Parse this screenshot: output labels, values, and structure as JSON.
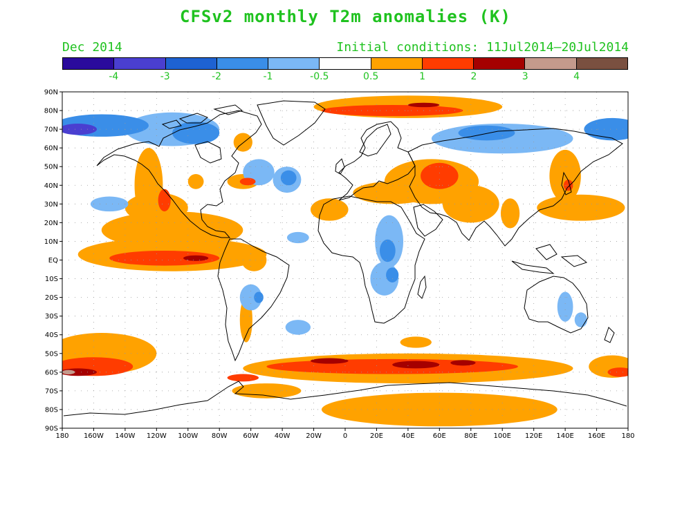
{
  "title": "CFSv2 monthly T2m anomalies (K)",
  "subtitle_left": "Dec 2014",
  "subtitle_right": "Initial conditions: 11Jul2014–20Jul2014",
  "colorbar": {
    "colors": [
      "#2a0a9c",
      "#4a3fd0",
      "#1e62d2",
      "#3a8ee8",
      "#7bb8f5",
      "#ffffff",
      "#ffa200",
      "#ff3c00",
      "#a50000",
      "#c49a8c",
      "#7a5040"
    ],
    "labels": [
      "-4",
      "-3",
      "-2",
      "-1",
      "-0.5",
      "0.5",
      "1",
      "2",
      "3",
      "4"
    ]
  },
  "map": {
    "lat_labels": [
      "90N",
      "80N",
      "70N",
      "60N",
      "50N",
      "40N",
      "30N",
      "20N",
      "10N",
      "EQ",
      "10S",
      "20S",
      "30S",
      "40S",
      "50S",
      "60S",
      "70S",
      "80S",
      "90S"
    ],
    "lon_labels": [
      "180",
      "160W",
      "140W",
      "120W",
      "100W",
      "80W",
      "60W",
      "40W",
      "20W",
      "0",
      "20E",
      "40E",
      "60E",
      "80E",
      "100E",
      "120E",
      "140E",
      "160E",
      "180"
    ],
    "anomaly_regions": [
      {
        "lon": -155,
        "lat": 72,
        "rx": 30,
        "ry": 6,
        "level": 3
      },
      {
        "lon": -170,
        "lat": 70,
        "rx": 12,
        "ry": 3,
        "level": 1
      },
      {
        "lon": -110,
        "lat": 70,
        "rx": 30,
        "ry": 9,
        "level": 4
      },
      {
        "lon": -95,
        "lat": 68,
        "rx": 15,
        "ry": 6,
        "level": 3
      },
      {
        "lon": -150,
        "lat": 30,
        "rx": 12,
        "ry": 4,
        "level": 4
      },
      {
        "lon": -55,
        "lat": 47,
        "rx": 10,
        "ry": 7,
        "level": 4
      },
      {
        "lon": -37,
        "lat": 43,
        "rx": 9,
        "ry": 7,
        "level": 4
      },
      {
        "lon": -36,
        "lat": 44,
        "rx": 5,
        "ry": 4,
        "level": 3
      },
      {
        "lon": -30,
        "lat": 12,
        "rx": 7,
        "ry": 3,
        "level": 4
      },
      {
        "lon": 28,
        "lat": 10,
        "rx": 9,
        "ry": 14,
        "level": 4
      },
      {
        "lon": 27,
        "lat": 5,
        "rx": 5,
        "ry": 6,
        "level": 3
      },
      {
        "lon": 25,
        "lat": -10,
        "rx": 9,
        "ry": 9,
        "level": 4
      },
      {
        "lon": 30,
        "lat": -8,
        "rx": 4,
        "ry": 4,
        "level": 3
      },
      {
        "lon": -60,
        "lat": -20,
        "rx": 7,
        "ry": 7,
        "level": 4
      },
      {
        "lon": -55,
        "lat": -20,
        "rx": 3,
        "ry": 3,
        "level": 3
      },
      {
        "lon": -30,
        "lat": -36,
        "rx": 8,
        "ry": 4,
        "level": 4
      },
      {
        "lon": 100,
        "lat": 65,
        "rx": 45,
        "ry": 8,
        "level": 4
      },
      {
        "lon": 90,
        "lat": 68,
        "rx": 18,
        "ry": 4,
        "level": 3
      },
      {
        "lon": 170,
        "lat": 70,
        "rx": 18,
        "ry": 6,
        "level": 3
      },
      {
        "lon": 140,
        "lat": -25,
        "rx": 5,
        "ry": 8,
        "level": 4
      },
      {
        "lon": 150,
        "lat": -32,
        "rx": 4,
        "ry": 4,
        "level": 4
      },
      {
        "lon": -120,
        "lat": 28,
        "rx": 20,
        "ry": 8,
        "level": 6
      },
      {
        "lon": -110,
        "lat": 16,
        "rx": 45,
        "ry": 10,
        "level": 6
      },
      {
        "lon": -110,
        "lat": 3,
        "rx": 60,
        "ry": 9,
        "level": 6
      },
      {
        "lon": -115,
        "lat": 1,
        "rx": 35,
        "ry": 4,
        "level": 7
      },
      {
        "lon": -95,
        "lat": 1,
        "rx": 8,
        "ry": 1.5,
        "level": 8
      },
      {
        "lon": -125,
        "lat": 40,
        "rx": 9,
        "ry": 20,
        "level": 6
      },
      {
        "lon": -115,
        "lat": 32,
        "rx": 4,
        "ry": 6,
        "level": 7
      },
      {
        "lon": -95,
        "lat": 42,
        "rx": 5,
        "ry": 4,
        "level": 6
      },
      {
        "lon": -65,
        "lat": 42,
        "rx": 10,
        "ry": 4,
        "level": 6
      },
      {
        "lon": -62,
        "lat": 42,
        "rx": 5,
        "ry": 2,
        "level": 7
      },
      {
        "lon": -65,
        "lat": 63,
        "rx": 6,
        "ry": 5,
        "level": 6
      },
      {
        "lon": -58,
        "lat": 0,
        "rx": 8,
        "ry": 6,
        "level": 6
      },
      {
        "lon": -63,
        "lat": -32,
        "rx": 4,
        "ry": 12,
        "level": 6
      },
      {
        "lon": 40,
        "lat": 82,
        "rx": 60,
        "ry": 6,
        "level": 6
      },
      {
        "lon": 30,
        "lat": 80,
        "rx": 45,
        "ry": 3,
        "level": 7
      },
      {
        "lon": 50,
        "lat": 83,
        "rx": 10,
        "ry": 1.2,
        "level": 8
      },
      {
        "lon": 55,
        "lat": 42,
        "rx": 30,
        "ry": 12,
        "level": 6
      },
      {
        "lon": 60,
        "lat": 45,
        "rx": 12,
        "ry": 7,
        "level": 7
      },
      {
        "lon": 30,
        "lat": 36,
        "rx": 25,
        "ry": 6,
        "level": 6
      },
      {
        "lon": 80,
        "lat": 30,
        "rx": 18,
        "ry": 10,
        "level": 6
      },
      {
        "lon": -10,
        "lat": 27,
        "rx": 12,
        "ry": 6,
        "level": 6
      },
      {
        "lon": 105,
        "lat": 25,
        "rx": 6,
        "ry": 8,
        "level": 6
      },
      {
        "lon": 140,
        "lat": 45,
        "rx": 10,
        "ry": 14,
        "level": 6
      },
      {
        "lon": 142,
        "lat": 40,
        "rx": 3,
        "ry": 3,
        "level": 7
      },
      {
        "lon": 150,
        "lat": 28,
        "rx": 28,
        "ry": 7,
        "level": 6
      },
      {
        "lon": 45,
        "lat": -44,
        "rx": 10,
        "ry": 3,
        "level": 6
      },
      {
        "lon": 40,
        "lat": -58,
        "rx": 105,
        "ry": 8,
        "level": 6
      },
      {
        "lon": 30,
        "lat": -57,
        "rx": 80,
        "ry": 4,
        "level": 7
      },
      {
        "lon": 45,
        "lat": -56,
        "rx": 15,
        "ry": 2,
        "level": 8
      },
      {
        "lon": -10,
        "lat": -54,
        "rx": 12,
        "ry": 1.5,
        "level": 8
      },
      {
        "lon": 75,
        "lat": -55,
        "rx": 8,
        "ry": 1.5,
        "level": 8
      },
      {
        "lon": -155,
        "lat": -50,
        "rx": 35,
        "ry": 11,
        "level": 6
      },
      {
        "lon": -160,
        "lat": -57,
        "rx": 25,
        "ry": 5,
        "level": 7
      },
      {
        "lon": -170,
        "lat": -60,
        "rx": 12,
        "ry": 2,
        "level": 8
      },
      {
        "lon": -176,
        "lat": -60,
        "rx": 4,
        "ry": 1.2,
        "level": 9
      },
      {
        "lon": 170,
        "lat": -57,
        "rx": 15,
        "ry": 6,
        "level": 6
      },
      {
        "lon": 175,
        "lat": -60,
        "rx": 8,
        "ry": 2.5,
        "level": 7
      },
      {
        "lon": 60,
        "lat": -80,
        "rx": 75,
        "ry": 9,
        "level": 6
      },
      {
        "lon": -50,
        "lat": -70,
        "rx": 22,
        "ry": 4,
        "level": 6
      },
      {
        "lon": -65,
        "lat": -63,
        "rx": 10,
        "ry": 2,
        "level": 7
      }
    ]
  }
}
